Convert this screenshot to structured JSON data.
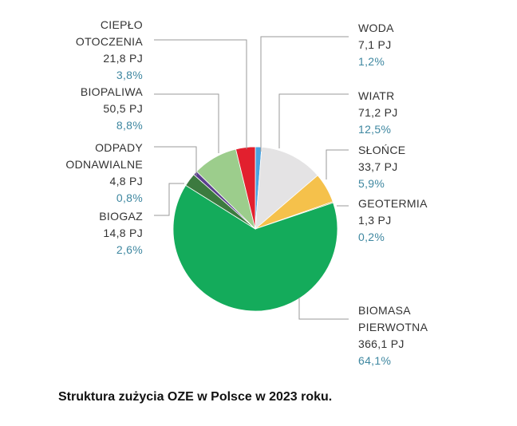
{
  "caption": "Struktura zużycia OZE w Polsce w 2023 roku.",
  "chart_data": {
    "type": "pie",
    "unit": "PJ",
    "slices": [
      {
        "key": "woda",
        "name_lines": [
          "WODA"
        ],
        "value": 7.1,
        "value_label": "7,1 PJ",
        "percent": 1.2,
        "percent_label": "1,2%",
        "color": "#4aa3e0"
      },
      {
        "key": "wiatr",
        "name_lines": [
          "WIATR"
        ],
        "value": 71.2,
        "value_label": "71,2 PJ",
        "percent": 12.5,
        "percent_label": "12,5%",
        "color": "#e4e3e4"
      },
      {
        "key": "slonce",
        "name_lines": [
          "SŁOŃCE"
        ],
        "value": 33.7,
        "value_label": "33,7 PJ",
        "percent": 5.9,
        "percent_label": "5,9%",
        "color": "#f5c14b"
      },
      {
        "key": "geotermia",
        "name_lines": [
          "GEOTERMIA"
        ],
        "value": 1.3,
        "value_label": "1,3 PJ",
        "percent": 0.2,
        "percent_label": "0,2%",
        "color": "#c9a23c"
      },
      {
        "key": "biomasa",
        "name_lines": [
          "BIOMASA",
          "PIERWOTNA"
        ],
        "value": 366.1,
        "value_label": "366,1 PJ",
        "percent": 64.1,
        "percent_label": "64,1%",
        "color": "#14ab5b"
      },
      {
        "key": "biogaz",
        "name_lines": [
          "BIOGAZ"
        ],
        "value": 14.8,
        "value_label": "14,8 PJ",
        "percent": 2.6,
        "percent_label": "2,6%",
        "color": "#3c7a3f"
      },
      {
        "key": "odpady",
        "name_lines": [
          "ODPADY",
          "ODNAWIALNE"
        ],
        "value": 4.8,
        "value_label": "4,8 PJ",
        "percent": 0.8,
        "percent_label": "0,8%",
        "color": "#5b3f8e"
      },
      {
        "key": "biopaliwa",
        "name_lines": [
          "BIOPALIWA"
        ],
        "value": 50.5,
        "value_label": "50,5 PJ",
        "percent": 8.8,
        "percent_label": "8,8%",
        "color": "#9ccd8c"
      },
      {
        "key": "cieplo",
        "name_lines": [
          "CIEPŁO",
          "OTOCZENIA"
        ],
        "value": 21.8,
        "value_label": "21,8 PJ",
        "percent": 3.8,
        "percent_label": "3,8%",
        "color": "#e2202e"
      }
    ]
  }
}
